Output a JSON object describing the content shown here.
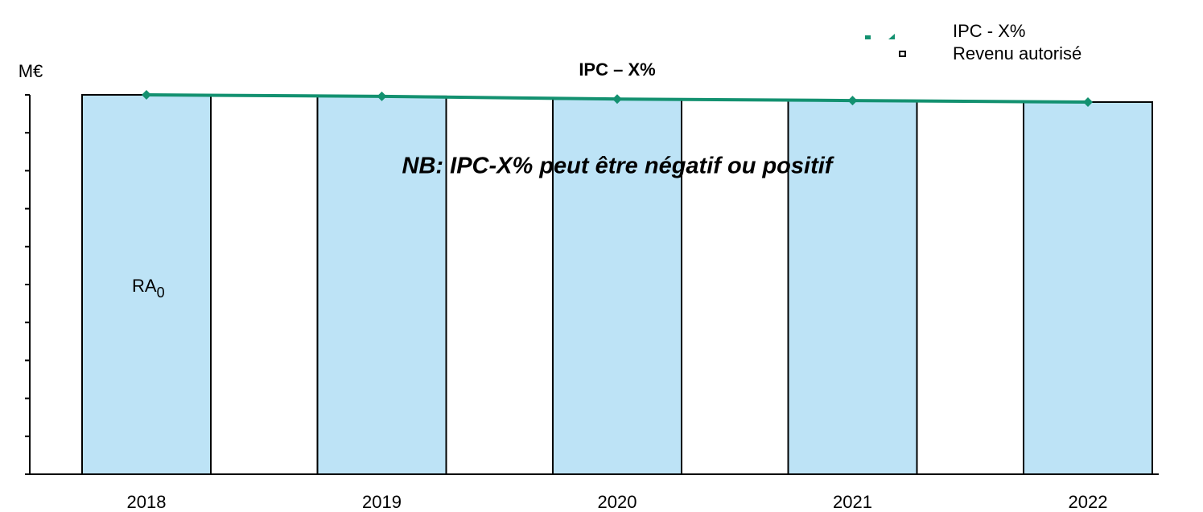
{
  "chart_data": {
    "type": "bar",
    "title": "IPC – X%",
    "y_label": "M€",
    "annotation": "NB: IPC-X% peut être négatif ou positif",
    "bar_label": {
      "text": "RA",
      "subscript": "0"
    },
    "categories": [
      "2018",
      "2019",
      "2020",
      "2021",
      "2022"
    ],
    "series": [
      {
        "name": "Revenu autorisé",
        "type": "bar",
        "color": "#bde3f6",
        "values": [
          100,
          99.6,
          98.9,
          98.5,
          98.1
        ]
      },
      {
        "name": "IPC - X%",
        "type": "line",
        "color": "#139170",
        "values": [
          100,
          99.6,
          98.9,
          98.5,
          98.1
        ]
      }
    ],
    "ylim": [
      0,
      100
    ],
    "yticks": [
      0,
      10,
      20,
      30,
      40,
      50,
      60,
      70,
      80,
      90,
      100
    ]
  }
}
